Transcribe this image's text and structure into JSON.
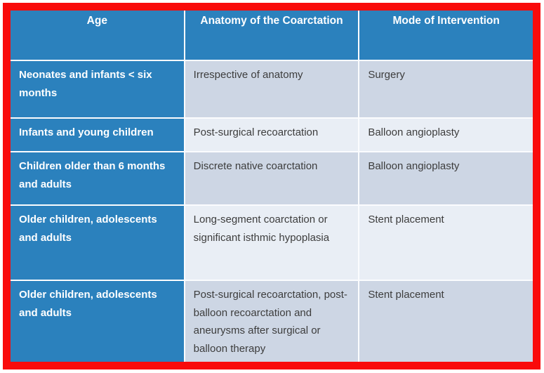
{
  "table": {
    "title_semantic": "Coarctation of the aorta: mode of intervention by age and anatomy",
    "colors": {
      "frame_red": "#f90b0b",
      "header_blue": "#2b81bd",
      "band_dark": "#cdd6e4",
      "band_light": "#e9eef5",
      "header_text": "#ffffff",
      "body_text": "#3d3d3d"
    },
    "columns": [
      "Age",
      "Anatomy of the Coarctation",
      "Mode of Intervention"
    ],
    "rows": [
      {
        "age": "Neonates and infants < six months",
        "anatomy": "Irrespective of anatomy",
        "intervention": "Surgery"
      },
      {
        "age": "Infants and young children",
        "anatomy": "Post-surgical recoarctation",
        "intervention": "Balloon angioplasty"
      },
      {
        "age": "Children older than 6 months and adults",
        "anatomy": "Discrete native coarctation",
        "intervention": "Balloon angioplasty"
      },
      {
        "age": "Older children, adolescents and adults",
        "anatomy": "Long-segment coarctation or significant isthmic hypoplasia",
        "intervention": "Stent placement"
      },
      {
        "age": "Older children, adolescents and adults",
        "anatomy": "Post-surgical recoarctation, post-balloon recoarctation and aneurysms after surgical or balloon therapy",
        "intervention": "Stent placement"
      }
    ]
  }
}
